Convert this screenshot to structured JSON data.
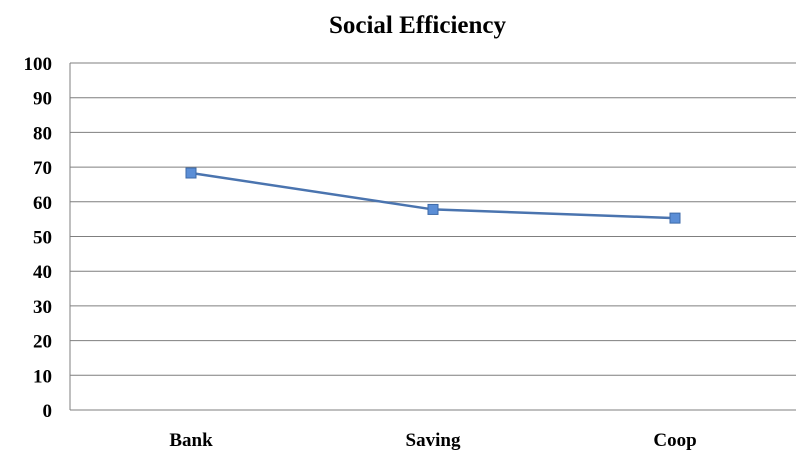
{
  "chart_data": {
    "type": "line",
    "title": "Social Efficiency",
    "categories": [
      "Bank",
      "Saving",
      "Coop"
    ],
    "series": [
      {
        "values": [
          68.3,
          57.8,
          55.3
        ]
      }
    ],
    "ylim": [
      0,
      100
    ],
    "yticks": [
      "0",
      "10",
      "20",
      "30",
      "40",
      "50",
      "60",
      "70",
      "80",
      "90",
      "100"
    ],
    "grid": true,
    "legend": "none",
    "line_color": "#4A74AF",
    "marker_color": "#5B8ED6"
  }
}
